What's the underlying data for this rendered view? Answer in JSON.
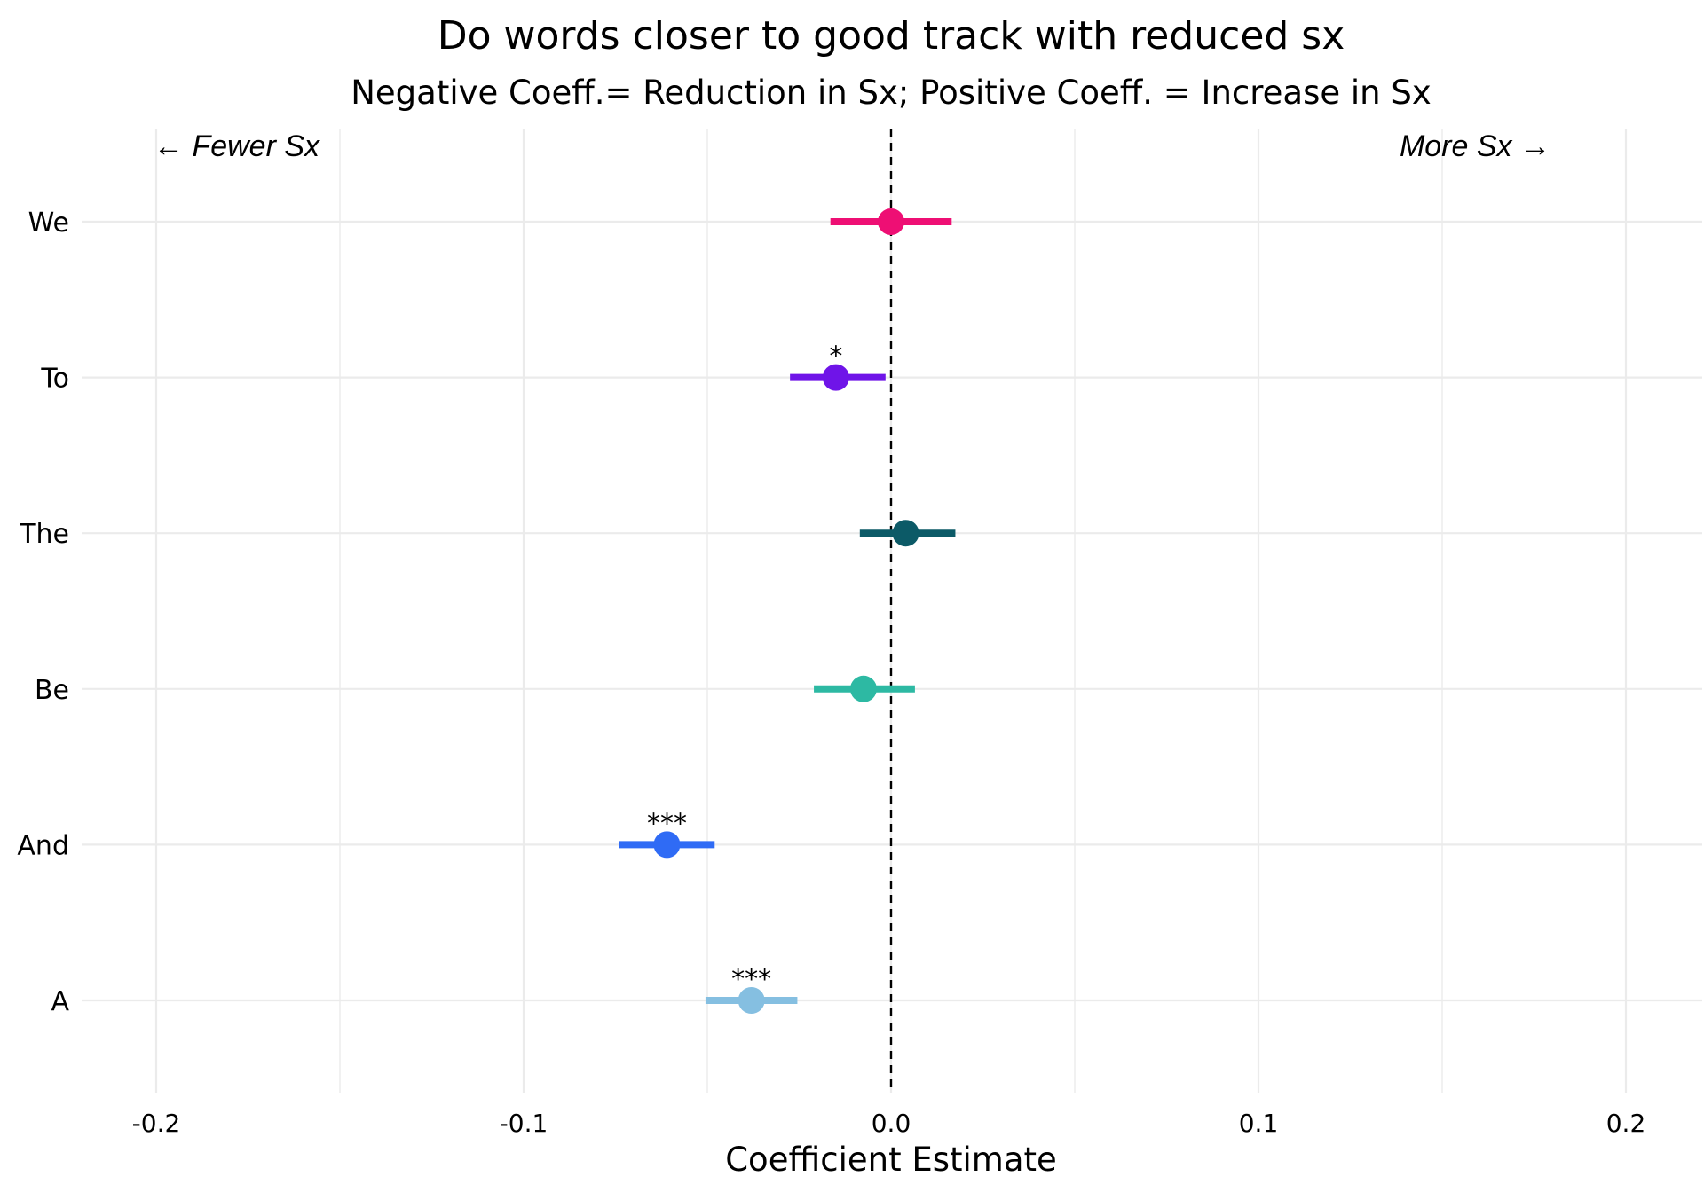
{
  "chart_data": {
    "type": "scatter",
    "subtype": "coefficient-plot",
    "title": "Do words closer to good track with reduced sx",
    "subtitle": "Negative Coeff.= Reduction in Sx; Positive Coeff. = Increase in Sx",
    "xlabel": "Coefficient Estimate",
    "ylabel": "",
    "xlim": [
      -0.22,
      0.22
    ],
    "x_ticks": [
      -0.2,
      -0.1,
      0.0,
      0.1,
      0.2
    ],
    "x_tick_labels": [
      "-0.2",
      "-0.1",
      "0.0",
      "0.1",
      "0.2"
    ],
    "categories": [
      "We",
      "To",
      "The",
      "Be",
      "And",
      "A"
    ],
    "estimates": [
      0.0,
      -0.015,
      0.004,
      -0.0075,
      -0.061,
      -0.038
    ],
    "ci_low": [
      -0.0165,
      -0.0275,
      -0.0085,
      -0.021,
      -0.074,
      -0.0505
    ],
    "ci_high": [
      0.0165,
      -0.0015,
      0.0175,
      0.0065,
      -0.048,
      -0.0255
    ],
    "significance": [
      "",
      "*",
      "",
      "",
      "***",
      "***"
    ],
    "colors": [
      "#ee0f74",
      "#6f14e8",
      "#0c5a67",
      "#2db9a3",
      "#2f6bf5",
      "#85bfe1"
    ],
    "reference_line": 0.0,
    "grid": true,
    "annotations": {
      "left": "← Fewer Sx",
      "right": "More Sx →"
    }
  }
}
